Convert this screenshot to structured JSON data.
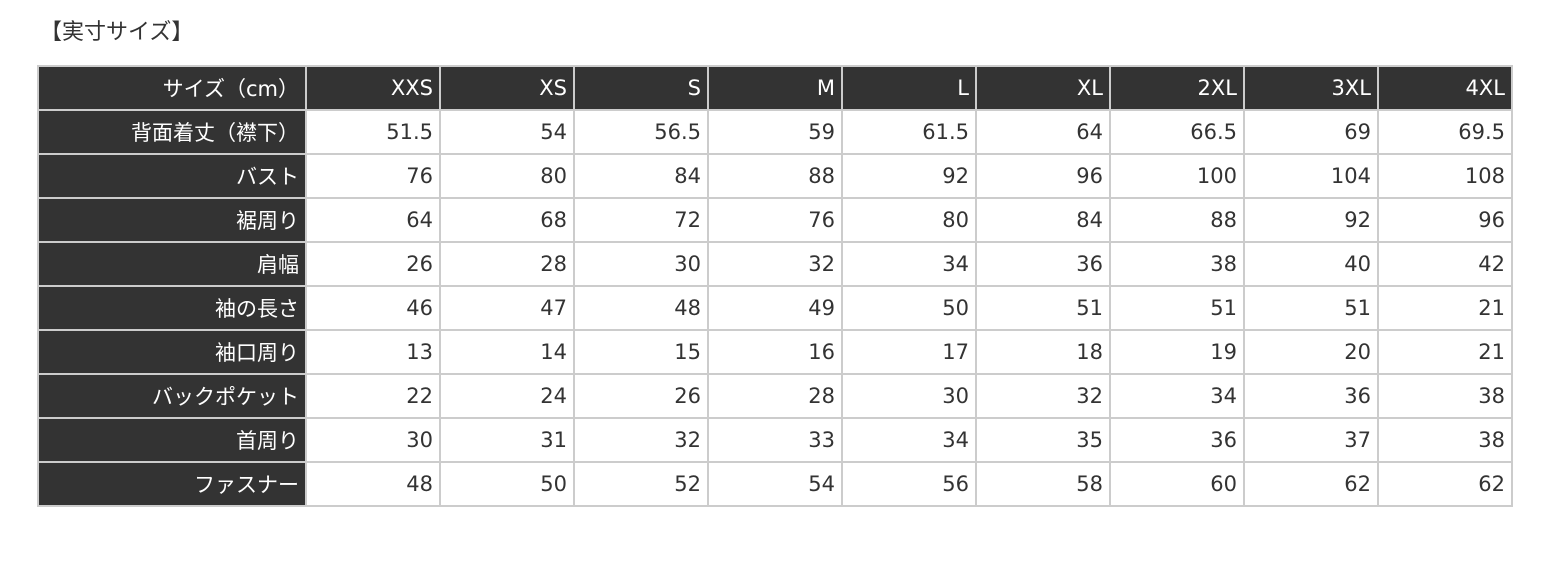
{
  "title": "【実寸サイズ】",
  "table": {
    "header_label": "サイズ（cm）",
    "sizes": [
      "XXS",
      "XS",
      "S",
      "M",
      "L",
      "XL",
      "2XL",
      "3XL",
      "4XL"
    ],
    "rows": [
      {
        "label": "背面着丈（襟下）",
        "values": [
          "51.5",
          "54",
          "56.5",
          "59",
          "61.5",
          "64",
          "66.5",
          "69",
          "69.5"
        ]
      },
      {
        "label": "バスト",
        "values": [
          "76",
          "80",
          "84",
          "88",
          "92",
          "96",
          "100",
          "104",
          "108"
        ]
      },
      {
        "label": "裾周り",
        "values": [
          "64",
          "68",
          "72",
          "76",
          "80",
          "84",
          "88",
          "92",
          "96"
        ]
      },
      {
        "label": "肩幅",
        "values": [
          "26",
          "28",
          "30",
          "32",
          "34",
          "36",
          "38",
          "40",
          "42"
        ]
      },
      {
        "label": "袖の長さ",
        "values": [
          "46",
          "47",
          "48",
          "49",
          "50",
          "51",
          "51",
          "51",
          "21"
        ]
      },
      {
        "label": "袖口周り",
        "values": [
          "13",
          "14",
          "15",
          "16",
          "17",
          "18",
          "19",
          "20",
          "21"
        ]
      },
      {
        "label": "バックポケット",
        "values": [
          "22",
          "24",
          "26",
          "28",
          "30",
          "32",
          "34",
          "36",
          "38"
        ]
      },
      {
        "label": "首周り",
        "values": [
          "30",
          "31",
          "32",
          "33",
          "34",
          "35",
          "36",
          "37",
          "38"
        ]
      },
      {
        "label": "ファスナー",
        "values": [
          "48",
          "50",
          "52",
          "54",
          "56",
          "58",
          "60",
          "62",
          "62"
        ]
      }
    ]
  }
}
